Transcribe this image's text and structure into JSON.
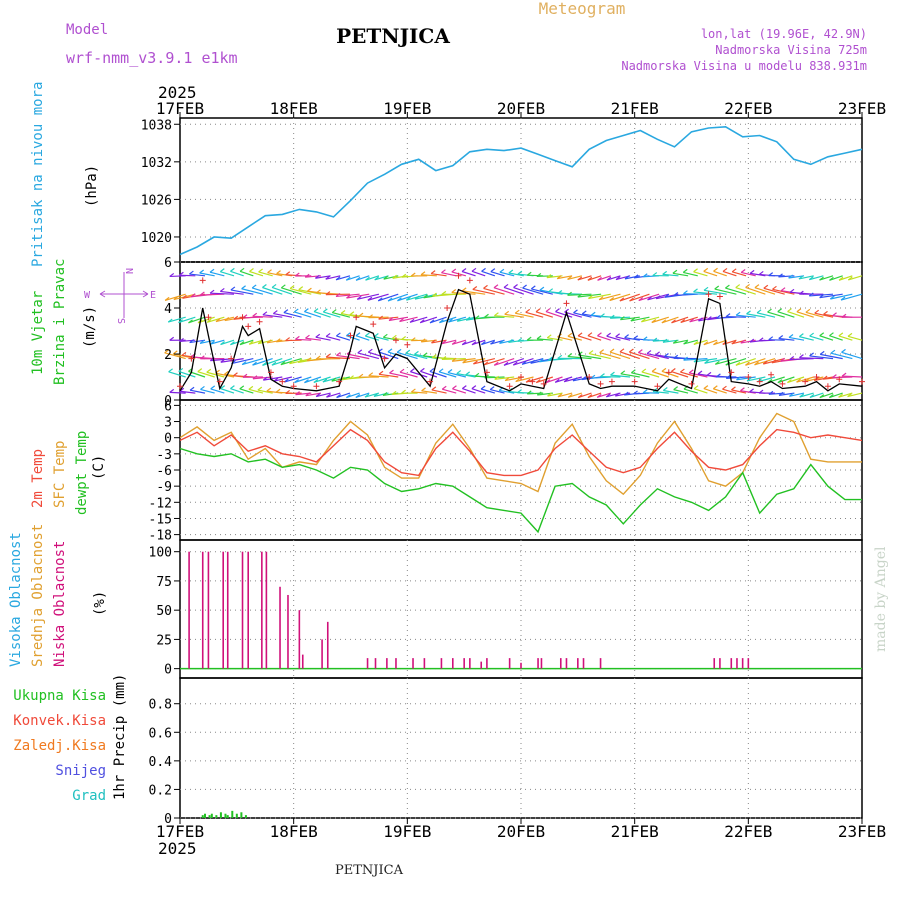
{
  "header": {
    "model_label": "Model",
    "model_name": "wrf-nmm_v3.9.1  e1km",
    "station": "PETNJICA",
    "title": "Meteogram",
    "lonlat": "lon,lat (19.96E, 42.9N)",
    "altitude": "Nadmorska Visina 725m",
    "model_altitude": "Nadmorska Visina u modelu 838.931m",
    "year_top": "2025",
    "year_bottom": "2025",
    "footer_station": "PETNJICA",
    "credit": "made by Angel"
  },
  "colors": {
    "pressure": "#2aa8e0",
    "temp2m": "#f04a3a",
    "sfc": "#e0a030",
    "dewpt": "#22c022",
    "cloud_low": "#d0107a",
    "cloud_mid": "#e0a030",
    "cloud_high": "#2aa8e0",
    "wind_speed": "#000000",
    "gust": "#e03030",
    "rain_total": "#22c022",
    "rain_conv": "#f04a3a",
    "rain_frz": "#f07a20",
    "snow": "#5050e0",
    "grad": "#20c0c0",
    "model_text": "#b050d0",
    "meteogram_title": "#e0b060"
  },
  "time_axis": {
    "labels": [
      "17FEB",
      "18FEB",
      "19FEB",
      "20FEB",
      "21FEB",
      "22FEB",
      "23FEB"
    ],
    "day_range": [
      0,
      6
    ]
  },
  "panels": {
    "pressure": {
      "label": "Pritisak na nivou mora",
      "unit": "(hPa)",
      "ticks": [
        "1020",
        "1026",
        "1032",
        "1038"
      ]
    },
    "wind": {
      "label1": "10m Vjetar",
      "label2": "Brzina i Pravac",
      "unit": "(m/s)",
      "ticks": [
        "0",
        "2",
        "4",
        "6"
      ],
      "compass_n": "N",
      "compass_w": "W",
      "compass_e": "E",
      "compass_s": "S"
    },
    "temp": {
      "label_2m": "2m Temp",
      "label_sfc": "SFC Temp",
      "label_dew": "dewpt Temp",
      "unit": "(C)",
      "ticks": [
        "6",
        "3",
        "0",
        "-3",
        "-6",
        "-9",
        "-12",
        "-15",
        "-18"
      ]
    },
    "cloud": {
      "label_high": "Visoka Oblacnost",
      "label_mid": "Srednja Oblacnost",
      "label_low": "Niska Oblacnost",
      "unit": "(%)",
      "ticks": [
        "0",
        "25",
        "50",
        "75",
        "100"
      ]
    },
    "precip": {
      "legend": [
        "Ukupna Kisa",
        "Konvek.Kisa",
        "Zaledj.Kisa",
        "Snijeg",
        "Grad"
      ],
      "unit": "1hr Precip (mm)",
      "ticks": [
        "0",
        "0.2",
        "0.4",
        "0.6",
        "0.8"
      ]
    }
  },
  "chart_data": [
    {
      "type": "line",
      "title": "Pritisak na nivou mora",
      "ylabel": "(hPa)",
      "ylim": [
        1016,
        1039
      ],
      "x_unit": "days after 17FEB 00Z",
      "series": [
        {
          "values_x": [
            0,
            0.15,
            0.3,
            0.45,
            0.6,
            0.75,
            0.9,
            1.05,
            1.2,
            1.35,
            1.5,
            1.65,
            1.8,
            1.95,
            2.1,
            2.25,
            2.4,
            2.55,
            2.7,
            2.85,
            3.0,
            3.15,
            3.3,
            3.45,
            3.6,
            3.75,
            3.9,
            4.05,
            4.2,
            4.35,
            4.5,
            4.65,
            4.8,
            4.95,
            5.1,
            5.25,
            5.4,
            5.55,
            5.7,
            5.85,
            6.0
          ],
          "values_y": [
            1017.2,
            1018.4,
            1020.0,
            1019.8,
            1021.6,
            1023.4,
            1023.6,
            1024.4,
            1024.0,
            1023.2,
            1025.8,
            1028.6,
            1030.0,
            1031.6,
            1032.4,
            1030.6,
            1031.4,
            1033.6,
            1034.0,
            1033.8,
            1034.2,
            1033.2,
            1032.2,
            1031.2,
            1034.0,
            1035.4,
            1036.2,
            1037.0,
            1035.6,
            1034.4,
            1036.8,
            1037.4,
            1037.6,
            1036.0,
            1036.2,
            1035.2,
            1032.4,
            1031.6,
            1032.8,
            1033.4,
            1034.0
          ]
        }
      ]
    },
    {
      "type": "line",
      "title": "10m Vjetar Brzina i Pravac",
      "ylabel": "(m/s)",
      "ylim": [
        0,
        6
      ],
      "series": [
        {
          "name": "wind speed",
          "values_x": [
            0,
            0.1,
            0.2,
            0.25,
            0.35,
            0.45,
            0.55,
            0.6,
            0.7,
            0.8,
            0.9,
            1.0,
            1.2,
            1.4,
            1.5,
            1.55,
            1.7,
            1.8,
            1.9,
            2.0,
            2.2,
            2.35,
            2.45,
            2.55,
            2.7,
            2.9,
            3.0,
            3.1,
            3.2,
            3.4,
            3.6,
            3.7,
            3.8,
            4.0,
            4.2,
            4.3,
            4.5,
            4.65,
            4.75,
            4.85,
            5.0,
            5.1,
            5.2,
            5.3,
            5.5,
            5.6,
            5.7,
            5.8,
            6.0
          ],
          "values_y": [
            0.4,
            1.2,
            4.0,
            2.8,
            0.5,
            1.4,
            3.2,
            2.8,
            3.1,
            0.9,
            0.6,
            0.5,
            0.4,
            0.6,
            2.2,
            3.2,
            2.9,
            1.4,
            2.0,
            1.8,
            0.6,
            3.4,
            4.8,
            4.6,
            0.8,
            0.4,
            0.7,
            0.6,
            0.5,
            3.8,
            0.7,
            0.5,
            0.6,
            0.6,
            0.4,
            0.9,
            0.5,
            4.4,
            4.2,
            0.8,
            0.7,
            0.6,
            0.8,
            0.5,
            0.6,
            0.8,
            0.4,
            0.7,
            0.6
          ]
        },
        {
          "name": "gust",
          "values_x": [
            0,
            0.1,
            0.2,
            0.25,
            0.35,
            0.45,
            0.55,
            0.6,
            0.7,
            0.8,
            0.9,
            1.0,
            1.2,
            1.4,
            1.5,
            1.55,
            1.7,
            1.8,
            1.9,
            2.0,
            2.2,
            2.35,
            2.45,
            2.55,
            2.7,
            2.9,
            3.0,
            3.1,
            3.2,
            3.4,
            3.6,
            3.7,
            3.8,
            4.0,
            4.2,
            4.3,
            4.5,
            4.65,
            4.75,
            4.85,
            5.0,
            5.1,
            5.2,
            5.3,
            5.5,
            5.6,
            5.7,
            5.8,
            6.0
          ],
          "values_y": [
            0.6,
            1.8,
            5.2,
            3.6,
            0.8,
            1.8,
            3.6,
            3.2,
            3.4,
            1.2,
            0.8,
            0.6,
            0.6,
            0.8,
            2.8,
            3.6,
            3.3,
            1.8,
            2.6,
            2.4,
            0.8,
            4.0,
            5.4,
            5.2,
            1.2,
            0.6,
            1.0,
            0.8,
            0.7,
            4.2,
            1.0,
            0.7,
            0.8,
            0.8,
            0.6,
            1.2,
            0.7,
            4.6,
            4.5,
            1.2,
            1.0,
            0.8,
            1.1,
            0.7,
            0.8,
            1.0,
            0.6,
            0.9,
            0.8
          ]
        }
      ]
    },
    {
      "type": "line",
      "title": "Temperatura",
      "ylabel": "(C)",
      "ylim": [
        -19,
        7
      ],
      "series": [
        {
          "name": "2m Temp",
          "values_x": [
            0,
            0.15,
            0.3,
            0.45,
            0.6,
            0.75,
            0.9,
            1.05,
            1.2,
            1.35,
            1.5,
            1.65,
            1.8,
            1.95,
            2.1,
            2.25,
            2.4,
            2.55,
            2.7,
            2.85,
            3.0,
            3.15,
            3.3,
            3.45,
            3.6,
            3.75,
            3.9,
            4.05,
            4.2,
            4.35,
            4.5,
            4.65,
            4.8,
            4.95,
            5.1,
            5.25,
            5.4,
            5.55,
            5.7,
            5.85,
            6.0
          ],
          "values_y": [
            -0.5,
            1.0,
            -1.5,
            0.5,
            -2.5,
            -1.5,
            -3.0,
            -3.5,
            -4.5,
            -1.5,
            1.5,
            -0.5,
            -4.5,
            -6.5,
            -7.0,
            -2.0,
            1.0,
            -2.5,
            -6.5,
            -7.0,
            -7.0,
            -6.0,
            -2.0,
            0.5,
            -2.5,
            -5.5,
            -6.5,
            -5.5,
            -2.0,
            1.0,
            -2.5,
            -5.5,
            -6.0,
            -5.0,
            -1.5,
            1.5,
            1.0,
            0.0,
            0.5,
            0.0,
            -0.5
          ]
        },
        {
          "name": "SFC Temp",
          "values_x": [
            0,
            0.15,
            0.3,
            0.45,
            0.6,
            0.75,
            0.9,
            1.05,
            1.2,
            1.35,
            1.5,
            1.65,
            1.8,
            1.95,
            2.1,
            2.25,
            2.4,
            2.55,
            2.7,
            2.85,
            3.0,
            3.15,
            3.3,
            3.45,
            3.6,
            3.75,
            3.9,
            4.05,
            4.2,
            4.35,
            4.5,
            4.65,
            4.8,
            4.95,
            5.1,
            5.25,
            5.4,
            5.55,
            5.7,
            5.85,
            6.0
          ],
          "values_y": [
            0.0,
            2.0,
            -0.5,
            1.0,
            -4.0,
            -2.0,
            -5.5,
            -4.5,
            -5.0,
            -0.5,
            3.0,
            0.5,
            -5.5,
            -7.5,
            -7.5,
            -1.0,
            2.5,
            -2.0,
            -7.5,
            -8.0,
            -8.5,
            -10.0,
            -1.0,
            2.5,
            -3.5,
            -8.0,
            -10.5,
            -7.0,
            -1.0,
            3.0,
            -2.0,
            -8.0,
            -9.0,
            -6.5,
            0.0,
            4.5,
            3.0,
            -4.0,
            -4.5,
            -4.5,
            -4.5
          ]
        },
        {
          "name": "dewpt Temp",
          "values_x": [
            0,
            0.15,
            0.3,
            0.45,
            0.6,
            0.75,
            0.9,
            1.05,
            1.2,
            1.35,
            1.5,
            1.65,
            1.8,
            1.95,
            2.1,
            2.25,
            2.4,
            2.55,
            2.7,
            2.85,
            3.0,
            3.15,
            3.3,
            3.45,
            3.6,
            3.75,
            3.9,
            4.05,
            4.2,
            4.35,
            4.5,
            4.65,
            4.8,
            4.95,
            5.1,
            5.25,
            5.4,
            5.55,
            5.7,
            5.85,
            6.0
          ],
          "values_y": [
            -2.0,
            -3.0,
            -3.5,
            -3.0,
            -4.5,
            -4.0,
            -5.5,
            -5.0,
            -6.0,
            -7.5,
            -5.5,
            -6.0,
            -8.5,
            -10.0,
            -9.5,
            -8.5,
            -9.0,
            -11.0,
            -13.0,
            -13.5,
            -14.0,
            -17.5,
            -9.0,
            -8.5,
            -11.0,
            -12.5,
            -16.0,
            -12.5,
            -9.5,
            -11.0,
            -12.0,
            -13.5,
            -11.0,
            -6.5,
            -14.0,
            -10.5,
            -9.5,
            -5.0,
            -9.0,
            -11.5,
            -11.5
          ]
        }
      ]
    },
    {
      "type": "bar",
      "title": "Oblacnost",
      "ylabel": "(%)",
      "ylim": [
        0,
        105
      ],
      "series": [
        {
          "name": "Niska Oblacnost",
          "values_x": [
            0.08,
            0.2,
            0.25,
            0.38,
            0.42,
            0.55,
            0.6,
            0.72,
            0.76,
            0.88,
            0.95,
            1.05,
            1.08,
            1.25,
            1.3,
            1.65,
            1.72,
            1.82,
            1.9,
            2.05,
            2.15,
            2.3,
            2.4,
            2.5,
            2.55,
            2.65,
            2.7,
            2.9,
            3.0,
            3.15,
            3.18,
            3.35,
            3.4,
            3.5,
            3.55,
            3.7,
            4.7,
            4.75,
            4.85,
            4.9,
            4.95,
            5.0
          ],
          "values_y": [
            100,
            100,
            100,
            100,
            100,
            100,
            100,
            100,
            100,
            70,
            63,
            50,
            12,
            25,
            40,
            9,
            9,
            9,
            9,
            9,
            9,
            9,
            9,
            9,
            9,
            6,
            9,
            9,
            5,
            9,
            9,
            9,
            9,
            9,
            9,
            9,
            9,
            9,
            9,
            9,
            9,
            9
          ]
        }
      ]
    },
    {
      "type": "bar",
      "title": "1hr Precip",
      "ylabel": "1hr Precip (mm)",
      "ylim": [
        0,
        0.98
      ],
      "series": [
        {
          "name": "Ukupna Kisa",
          "values_x": [
            0.2,
            0.22,
            0.26,
            0.28,
            0.32,
            0.36,
            0.4,
            0.42,
            0.46,
            0.5,
            0.54,
            0.58
          ],
          "values_y": [
            0.02,
            0.03,
            0.02,
            0.03,
            0.02,
            0.04,
            0.03,
            0.02,
            0.05,
            0.03,
            0.04,
            0.02
          ]
        }
      ]
    }
  ]
}
